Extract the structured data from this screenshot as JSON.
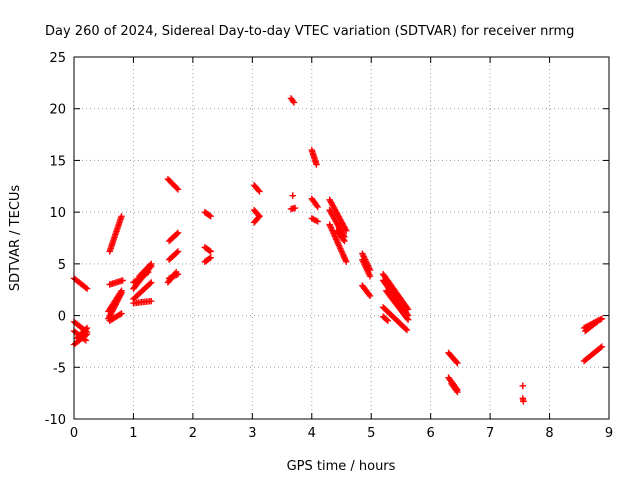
{
  "chart_data": {
    "type": "scatter",
    "title": "Day 260 of 2024, Sidereal Day-to-day VTEC variation (SDTVAR) for receiver nrmg",
    "xlabel": "GPS time / hours",
    "ylabel": "SDTVAR / TECUs",
    "xlim": [
      0,
      9
    ],
    "ylim": [
      -10,
      25
    ],
    "xticks": [
      0,
      1,
      2,
      3,
      4,
      5,
      6,
      7,
      8,
      9
    ],
    "yticks": [
      -10,
      -5,
      0,
      5,
      10,
      15,
      20,
      25
    ],
    "grid": true,
    "marker": "plus",
    "color": "#ff0000",
    "segments": [
      [
        [
          0.0,
          3.6
        ],
        [
          0.22,
          2.6
        ]
      ],
      [
        [
          0.0,
          -0.6
        ],
        [
          0.22,
          -1.6
        ]
      ],
      [
        [
          0.0,
          -2.8
        ],
        [
          0.22,
          -1.8
        ]
      ],
      [
        [
          0.05,
          -2.2
        ],
        [
          0.22,
          -1.2
        ]
      ],
      [
        [
          0.0,
          -1.5
        ],
        [
          0.2,
          -2.4
        ]
      ],
      [
        [
          0.6,
          6.2
        ],
        [
          0.8,
          9.6
        ]
      ],
      [
        [
          0.6,
          3.0
        ],
        [
          0.82,
          3.4
        ]
      ],
      [
        [
          0.58,
          -0.3
        ],
        [
          0.8,
          2.2
        ]
      ],
      [
        [
          0.58,
          0.4
        ],
        [
          0.8,
          2.4
        ]
      ],
      [
        [
          0.6,
          -0.5
        ],
        [
          0.8,
          0.2
        ]
      ],
      [
        [
          1.0,
          1.2
        ],
        [
          1.3,
          1.4
        ]
      ],
      [
        [
          1.0,
          1.6
        ],
        [
          1.3,
          3.2
        ]
      ],
      [
        [
          1.0,
          2.6
        ],
        [
          1.3,
          4.8
        ]
      ],
      [
        [
          1.1,
          3.8
        ],
        [
          1.3,
          5.0
        ]
      ],
      [
        [
          1.0,
          3.2
        ],
        [
          1.25,
          4.2
        ]
      ],
      [
        [
          1.58,
          13.2
        ],
        [
          1.75,
          12.2
        ]
      ],
      [
        [
          1.6,
          7.2
        ],
        [
          1.75,
          8.0
        ]
      ],
      [
        [
          1.6,
          5.4
        ],
        [
          1.75,
          6.2
        ]
      ],
      [
        [
          1.6,
          3.6
        ],
        [
          1.75,
          4.0
        ]
      ],
      [
        [
          1.58,
          3.2
        ],
        [
          1.72,
          4.2
        ]
      ],
      [
        [
          2.2,
          10.0
        ],
        [
          2.3,
          9.6
        ]
      ],
      [
        [
          2.2,
          6.6
        ],
        [
          2.3,
          6.2
        ]
      ],
      [
        [
          2.2,
          5.2
        ],
        [
          2.3,
          5.6
        ]
      ],
      [
        [
          3.03,
          12.6
        ],
        [
          3.12,
          12.0
        ]
      ],
      [
        [
          3.03,
          10.2
        ],
        [
          3.12,
          9.6
        ]
      ],
      [
        [
          3.03,
          9.0
        ],
        [
          3.12,
          9.6
        ]
      ],
      [
        [
          3.65,
          21.0
        ],
        [
          3.7,
          20.6
        ]
      ],
      [
        [
          3.68,
          11.6
        ],
        [
          3.68,
          11.6
        ]
      ],
      [
        [
          3.65,
          10.3
        ],
        [
          3.72,
          10.4
        ]
      ],
      [
        [
          4.0,
          16.0
        ],
        [
          4.08,
          14.6
        ]
      ],
      [
        [
          4.0,
          11.3
        ],
        [
          4.1,
          10.5
        ]
      ],
      [
        [
          4.0,
          9.4
        ],
        [
          4.1,
          9.1
        ]
      ],
      [
        [
          4.3,
          11.2
        ],
        [
          4.58,
          8.2
        ]
      ],
      [
        [
          4.3,
          10.2
        ],
        [
          4.55,
          7.6
        ]
      ],
      [
        [
          4.3,
          8.8
        ],
        [
          4.58,
          5.2
        ]
      ],
      [
        [
          4.42,
          8.2
        ],
        [
          4.55,
          7.2
        ]
      ],
      [
        [
          4.85,
          6.0
        ],
        [
          4.98,
          4.4
        ]
      ],
      [
        [
          4.85,
          5.4
        ],
        [
          4.98,
          3.8
        ]
      ],
      [
        [
          4.85,
          2.9
        ],
        [
          4.98,
          1.9
        ]
      ],
      [
        [
          5.2,
          4.0
        ],
        [
          5.62,
          0.6
        ]
      ],
      [
        [
          5.2,
          3.4
        ],
        [
          5.62,
          0.0
        ]
      ],
      [
        [
          5.25,
          2.4
        ],
        [
          5.62,
          -0.4
        ]
      ],
      [
        [
          5.2,
          0.8
        ],
        [
          5.6,
          -1.4
        ]
      ],
      [
        [
          5.2,
          -0.1
        ],
        [
          5.28,
          -0.5
        ]
      ],
      [
        [
          6.3,
          -3.6
        ],
        [
          6.45,
          -4.6
        ]
      ],
      [
        [
          6.3,
          -6.0
        ],
        [
          6.45,
          -7.2
        ]
      ],
      [
        [
          6.35,
          -6.6
        ],
        [
          6.45,
          -7.4
        ]
      ],
      [
        [
          7.55,
          -6.8
        ],
        [
          7.55,
          -6.8
        ]
      ],
      [
        [
          7.55,
          -8.0
        ],
        [
          7.56,
          -8.3
        ]
      ],
      [
        [
          8.58,
          -1.2
        ],
        [
          8.88,
          -0.3
        ]
      ],
      [
        [
          8.6,
          -1.5
        ],
        [
          8.8,
          -0.6
        ]
      ],
      [
        [
          8.58,
          -4.4
        ],
        [
          8.88,
          -3.0
        ]
      ]
    ]
  }
}
